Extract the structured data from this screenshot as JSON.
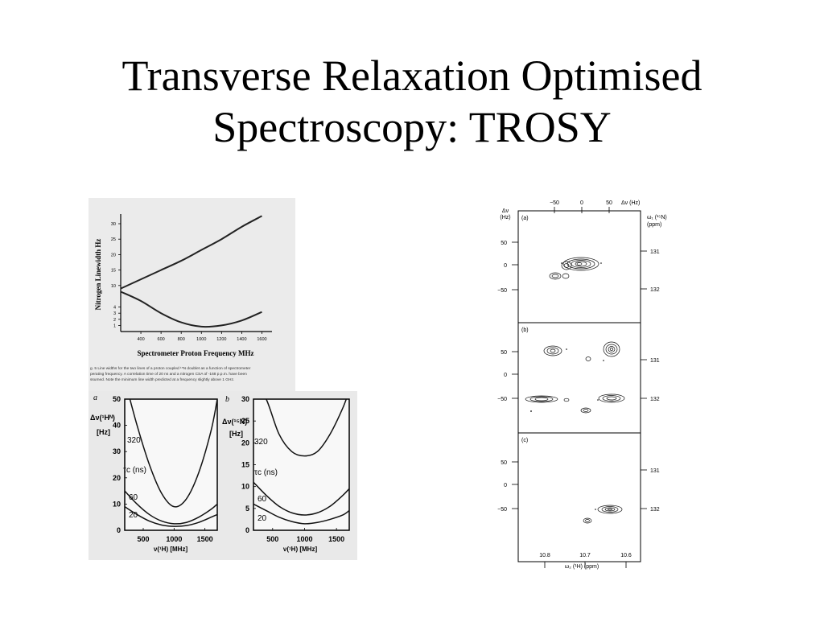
{
  "slide": {
    "title_line1": "Transverse Relaxation Optimised",
    "title_line2": "Spectroscopy: TROSY"
  },
  "figure1": {
    "ylabel": "Nitrogen Linewidth  Hz",
    "xlabel": "Spectrometer Proton Frequency  MHz",
    "yticks": [
      1,
      2,
      3,
      4,
      10,
      15,
      20,
      25,
      30
    ],
    "xticks": [
      400,
      600,
      800,
      1000,
      1200,
      1400,
      1600
    ],
    "caption_line1": "g. 5 Line widths for the two lines of a proton coupled ¹⁵N doublet as a function of spectrometer",
    "caption_line2": "perating frequency. A correlation time of 20 ns and a nitrogen CSA of -168 p.p.m. have been",
    "caption_line3": "ssumed. Note the minimum line width predicted at a frequency slightly above 1 GHz."
  },
  "figure2": {
    "panel_a": {
      "letter": "a",
      "ylabel_1": "Δν(¹Hᴺ)",
      "ylabel_2": "[Hz]",
      "yticks": [
        0,
        10,
        20,
        30,
        40,
        50
      ],
      "xticks": [
        500,
        1000,
        1500
      ],
      "xlabel": "ν(¹H) [MHz]",
      "label_320": "320",
      "label_tau": "τc (ns)",
      "label_60": "60",
      "label_20": "20"
    },
    "panel_b": {
      "letter": "b",
      "ylabel_1": "Δν(¹⁵N)",
      "ylabel_2": "[Hz]",
      "yticks": [
        0,
        5,
        10,
        15,
        20,
        25,
        30
      ],
      "xticks": [
        500,
        1000,
        1500
      ],
      "xlabel": "ν(¹H) [MHz]",
      "label_320": "320",
      "label_tau": "τc (ns)",
      "label_60": "60",
      "label_20": "20"
    }
  },
  "figure3": {
    "top_axis_label": "Δν (Hz)",
    "top_ticks": [
      "−50",
      "0",
      "50"
    ],
    "left_axis_1": "Δν",
    "left_axis_2": "(Hz)",
    "right_axis_1": "ω₁ (¹⁵N)",
    "right_axis_2": "(ppm)",
    "panel_a": {
      "tag": "(a)",
      "left_ticks": [
        "50",
        "0",
        "−50"
      ],
      "right_ticks": [
        "131",
        "132"
      ]
    },
    "panel_b": {
      "tag": "(b)",
      "left_ticks": [
        "50",
        "0",
        "−50"
      ],
      "right_ticks": [
        "131",
        "132"
      ]
    },
    "panel_c": {
      "tag": "(c)",
      "left_ticks": [
        "50",
        "0",
        "−50"
      ],
      "right_ticks": [
        "131",
        "132"
      ]
    },
    "bottom_ticks": [
      "10.8",
      "10.7",
      "10.6"
    ],
    "bottom_axis_label": "ω₂ (¹H) (ppm)"
  },
  "chart_data": [
    {
      "type": "line",
      "xlabel": "Spectrometer Proton Frequency  MHz",
      "ylabel": "Nitrogen Linewidth  Hz",
      "xlim": [
        200,
        1700
      ],
      "series": [
        {
          "x": [
            200,
            400,
            600,
            800,
            1000,
            1200,
            1400,
            1600
          ],
          "values": [
            9,
            12,
            15,
            18,
            21.5,
            25,
            29,
            32.5
          ]
        },
        {
          "x": [
            200,
            400,
            600,
            800,
            1000,
            1200,
            1400,
            1600
          ],
          "values": [
            8,
            5,
            3,
            1.5,
            0.8,
            1,
            1.8,
            3.2
          ]
        }
      ]
    },
    {
      "type": "line",
      "xlabel": "ν(¹H) [MHz]",
      "ylabel": "Δν(¹Hᴺ) [Hz]",
      "ylim": [
        0,
        50
      ],
      "series": [
        {
          "name": "320",
          "x": [
            200,
            400,
            600,
            800,
            1000,
            1200,
            1400,
            1600,
            1700
          ],
          "values": [
            60,
            40,
            25,
            14,
            9,
            12,
            22,
            38,
            50
          ]
        },
        {
          "name": "60",
          "x": [
            200,
            400,
            600,
            800,
            1000,
            1200,
            1400,
            1600,
            1700
          ],
          "values": [
            15,
            10,
            6,
            3.5,
            2.5,
            3,
            5,
            8,
            10
          ]
        },
        {
          "name": "20",
          "x": [
            200,
            400,
            600,
            800,
            1000,
            1200,
            1400,
            1600,
            1700
          ],
          "values": [
            9,
            6,
            3.5,
            2,
            1.5,
            1.8,
            3,
            5,
            6
          ]
        }
      ]
    },
    {
      "type": "line",
      "xlabel": "ν(¹H) [MHz]",
      "ylabel": "Δν(¹⁵N) [Hz]",
      "ylim": [
        0,
        30
      ],
      "series": [
        {
          "name": "320",
          "x": [
            200,
            400,
            600,
            800,
            1000,
            1200,
            1400,
            1600,
            1700
          ],
          "values": [
            45,
            30,
            22,
            18,
            17,
            18,
            22,
            28,
            32
          ]
        },
        {
          "name": "60",
          "x": [
            200,
            400,
            600,
            800,
            1000,
            1200,
            1400,
            1600,
            1700
          ],
          "values": [
            11,
            8,
            5.5,
            4,
            3.5,
            4,
            5.5,
            8,
            9.5
          ]
        },
        {
          "name": "20",
          "x": [
            200,
            400,
            600,
            800,
            1000,
            1200,
            1400,
            1600,
            1700
          ],
          "values": [
            6,
            4.5,
            3,
            2,
            1.5,
            1.8,
            2.5,
            3.5,
            4.5
          ]
        }
      ]
    }
  ]
}
